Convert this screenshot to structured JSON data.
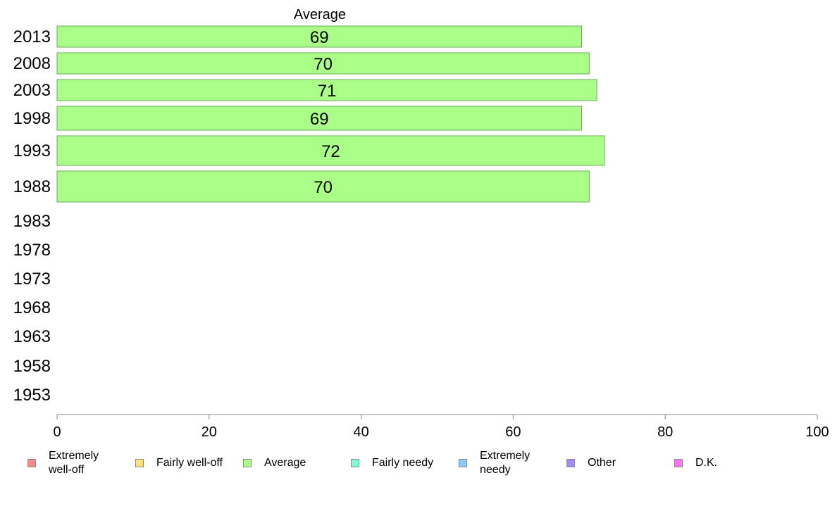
{
  "chart_data": {
    "type": "bar",
    "orientation": "horizontal",
    "title": "Average",
    "categories": [
      "2013",
      "2008",
      "2003",
      "1998",
      "1993",
      "1988",
      "1983",
      "1978",
      "1973",
      "1968",
      "1963",
      "1958",
      "1953"
    ],
    "series": [
      {
        "name": "Average",
        "color": "#aaff88",
        "values": [
          69,
          70,
          71,
          69,
          72,
          70,
          null,
          null,
          null,
          null,
          null,
          null,
          null
        ]
      }
    ],
    "xlim": [
      0,
      100
    ],
    "xticks": [
      "0",
      "20",
      "40",
      "60",
      "80",
      "100"
    ],
    "grid": false,
    "legend_position": "bottom",
    "legend": [
      {
        "label": "Extremely\nwell-off",
        "color": "#ff8888"
      },
      {
        "label": "Fairly well-off",
        "color": "#ffe27a"
      },
      {
        "label": "Average",
        "color": "#aaff88"
      },
      {
        "label": "Fairly needy",
        "color": "#7fffcf"
      },
      {
        "label": "Extremely\nneedy",
        "color": "#88ccff"
      },
      {
        "label": "Other",
        "color": "#a88cff"
      },
      {
        "label": "D.K.",
        "color": "#ff77ee"
      }
    ]
  }
}
